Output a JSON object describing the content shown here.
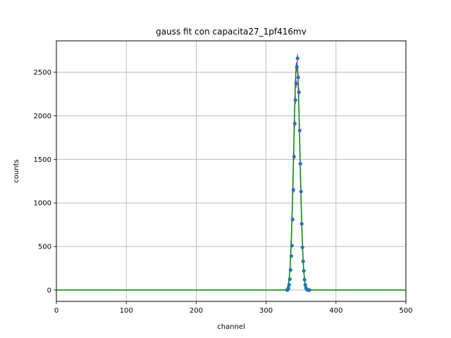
{
  "chart_data": {
    "type": "scatter",
    "title": "gauss fit con capacita27_1pf416mv",
    "xlabel": "channel",
    "ylabel": "counts",
    "xlim": [
      0,
      500
    ],
    "ylim": [
      -130,
      2860
    ],
    "xticks": [
      0,
      100,
      200,
      300,
      400,
      500
    ],
    "yticks": [
      0,
      500,
      1000,
      1500,
      2000,
      2500
    ],
    "grid": true,
    "colors": {
      "points": "#1f77b4",
      "errorbars": "#d62fd6",
      "fit": "#008000"
    },
    "series": [
      {
        "kind": "scatter_with_errorbars",
        "x": [
          330,
          331,
          332,
          333,
          334,
          335,
          336,
          337,
          338,
          339,
          340,
          341,
          342,
          343,
          344,
          345,
          346,
          347,
          348,
          349,
          350,
          351,
          352,
          353,
          354,
          355,
          356,
          357,
          358,
          359,
          360,
          361,
          362
        ],
        "y": [
          0,
          5,
          20,
          60,
          125,
          230,
          390,
          510,
          810,
          1150,
          1530,
          1910,
          2180,
          2370,
          2560,
          2660,
          2440,
          2270,
          1830,
          1450,
          1130,
          760,
          490,
          330,
          220,
          120,
          60,
          25,
          10,
          3,
          1,
          0,
          0
        ]
      },
      {
        "kind": "fit_line",
        "model": "gauss",
        "amplitude": 2610,
        "mean": 343.9,
        "sigma": 4.5,
        "x_range": [
          0,
          500
        ]
      }
    ]
  }
}
